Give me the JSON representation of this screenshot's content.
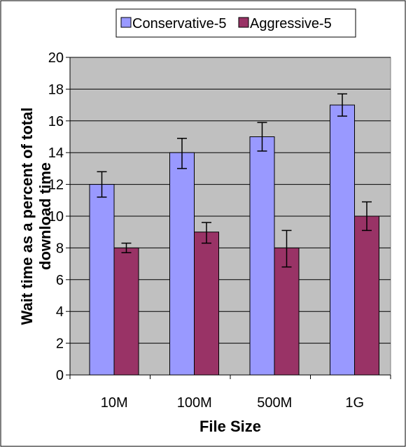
{
  "chart_data": {
    "type": "bar",
    "title": "",
    "xlabel": "File Size",
    "ylabel": "Wait time as a percent of total download time",
    "ylabel_lines": [
      "Wait time as a percent of total",
      "download time"
    ],
    "categories": [
      "10M",
      "100M",
      "500M",
      "1G"
    ],
    "ylim": [
      0,
      20
    ],
    "yticks": [
      0,
      2,
      4,
      6,
      8,
      10,
      12,
      14,
      16,
      18,
      20
    ],
    "grid": true,
    "legend_position": "top",
    "series": [
      {
        "name": "Conservative-5",
        "color": "#9999ff",
        "values": [
          12,
          14,
          15,
          17
        ],
        "error_low": [
          11.2,
          13.0,
          14.1,
          16.3
        ],
        "error_high": [
          12.8,
          14.9,
          15.9,
          17.7
        ]
      },
      {
        "name": "Aggressive-5",
        "color": "#993366",
        "values": [
          8,
          9,
          8,
          10
        ],
        "error_low": [
          7.7,
          8.3,
          6.8,
          9.1
        ],
        "error_high": [
          8.3,
          9.6,
          9.1,
          10.9
        ]
      }
    ],
    "plot_background": "#c0c0c0"
  }
}
